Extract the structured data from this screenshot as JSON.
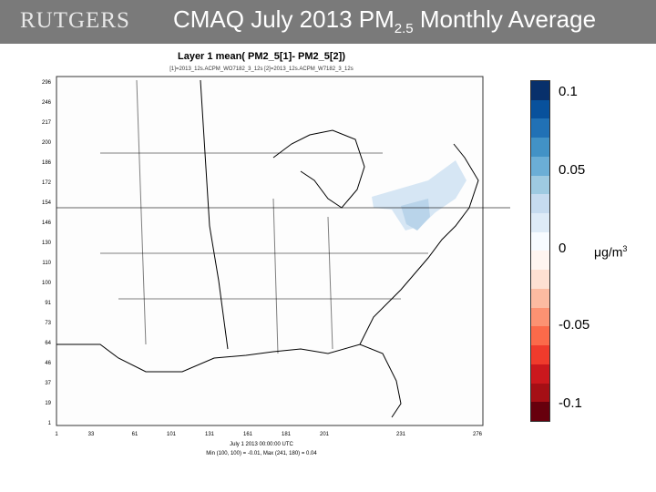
{
  "header": {
    "logo_text": "RUTGERS",
    "title_main": "CMAQ July 2013 PM",
    "title_sub": "2.5",
    "title_end": " Monthly Average"
  },
  "plot": {
    "title": "Layer 1 mean( PM2_5[1]- PM2_5[2])",
    "subtitle": "[1]=2013_12s.ACPM_WO7182_3_12s [2]=2013_12s.ACPM_W7182_3_12s",
    "x_ticks": [
      "1",
      "33",
      "61",
      "101",
      "131",
      "161",
      "181",
      "201",
      "231",
      "276"
    ],
    "y_ticks": [
      "296",
      "246",
      "217",
      "200",
      "186",
      "172",
      "154",
      "146",
      "130",
      "110",
      "100",
      "91",
      "73",
      "64",
      "46",
      "37",
      "19",
      "1"
    ],
    "footer_line1": "July 1 2013 00:00:00 UTC",
    "footer_line2": "Min (100, 100) = -0.01, Max (241, 180) = 0.04"
  },
  "colorbar": {
    "colors": [
      "#08306b",
      "#08519c",
      "#2171b5",
      "#4292c6",
      "#6baed6",
      "#9ecae1",
      "#c6dbef",
      "#deebf7",
      "#f7fbff",
      "#fff5f0",
      "#fee0d2",
      "#fcbba1",
      "#fc9272",
      "#fb6a4a",
      "#ef3b2c",
      "#cb181d",
      "#a50f15",
      "#67000d"
    ],
    "labels": [
      "0.1",
      "0.05",
      "0",
      "-0.05",
      "-0.1"
    ],
    "unit_main": "μg/m",
    "unit_sup": "3"
  }
}
